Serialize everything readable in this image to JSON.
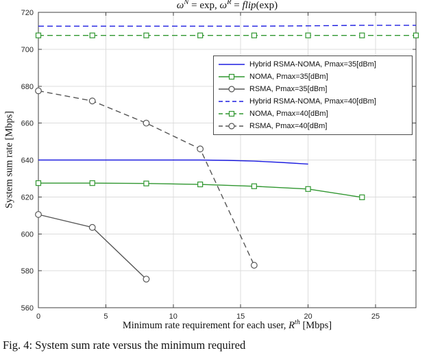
{
  "title_segments": [
    {
      "text": "ω",
      "kind": "italic"
    },
    {
      "text": "N",
      "kind": "sup-italic"
    },
    {
      "text": " = exp, ",
      "kind": "normal"
    },
    {
      "text": "ω",
      "kind": "italic"
    },
    {
      "text": "R",
      "kind": "sup-italic"
    },
    {
      "text": " = ",
      "kind": "normal"
    },
    {
      "text": "flip",
      "kind": "italic"
    },
    {
      "text": "(exp)",
      "kind": "normal"
    }
  ],
  "xlabel_segments": [
    {
      "text": "Minimum rate requirement for each user, ",
      "kind": "normal"
    },
    {
      "text": "R",
      "kind": "italic"
    },
    {
      "text": "th",
      "kind": "sup-italic"
    },
    {
      "text": " [Mbps]",
      "kind": "normal"
    }
  ],
  "caption": "Fig. 4: System sum rate versus the minimum required",
  "chart_data": {
    "type": "line",
    "title": "omega^N = exp, omega^R = flip(exp)",
    "xlabel": "Minimum rate requirement for each user, R^th [Mbps]",
    "ylabel": "System sum rate [Mbps]",
    "xlim": [
      0,
      28
    ],
    "ylim": [
      560,
      720
    ],
    "xticks": [
      0,
      5,
      10,
      15,
      20,
      25
    ],
    "yticks": [
      560,
      580,
      600,
      620,
      640,
      660,
      680,
      700,
      720
    ],
    "grid": true,
    "grid_color": "#dcdcdc",
    "axis_color": "#3f3f3f",
    "background": "#ffffff",
    "legend_position": "inside-upper-right",
    "series": [
      {
        "id": "hybrid-35",
        "name": "Hybrid RSMA-NOMA, Pmax=35[dBm]",
        "color": "#1b1be0",
        "dash": "solid",
        "marker": "none",
        "x": [
          0,
          4,
          8,
          12,
          14,
          16,
          18,
          20
        ],
        "y": [
          640,
          640,
          640,
          640,
          639.8,
          639.4,
          638.7,
          637.8
        ]
      },
      {
        "id": "noma-35",
        "name": "NOMA, Pmax=35[dBm]",
        "color": "#2f962f",
        "dash": "solid",
        "marker": "square",
        "x": [
          0,
          4,
          8,
          12,
          16,
          20,
          24
        ],
        "y": [
          627.5,
          627.5,
          627.3,
          626.8,
          625.8,
          624.3,
          619.8
        ]
      },
      {
        "id": "rsma-35",
        "name": "RSMA, Pmax=35[dBm]",
        "color": "#555555",
        "dash": "solid",
        "marker": "circle",
        "x": [
          0,
          4,
          8
        ],
        "y": [
          610.5,
          603.5,
          575.5
        ]
      },
      {
        "id": "hybrid-40",
        "name": "Hybrid RSMA-NOMA, Pmax=40[dBm]",
        "color": "#1b1be0",
        "dash": "dashed",
        "marker": "none",
        "x": [
          0,
          4,
          8,
          12,
          16,
          20,
          24,
          28
        ],
        "y": [
          712.5,
          712.5,
          712.5,
          712.5,
          712.5,
          712.7,
          713,
          713
        ]
      },
      {
        "id": "noma-40",
        "name": "NOMA, Pmax=40[dBm]",
        "color": "#2f962f",
        "dash": "dashed",
        "marker": "square",
        "x": [
          0,
          4,
          8,
          12,
          16,
          20,
          24,
          28
        ],
        "y": [
          707.5,
          707.5,
          707.5,
          707.5,
          707.5,
          707.5,
          707.5,
          707.5
        ]
      },
      {
        "id": "rsma-40",
        "name": "RSMA, Pmax=40[dBm]",
        "color": "#555555",
        "dash": "dashed",
        "marker": "circle",
        "x": [
          0,
          4,
          8,
          12,
          16
        ],
        "y": [
          677.5,
          672,
          660,
          646,
          583
        ]
      }
    ]
  }
}
